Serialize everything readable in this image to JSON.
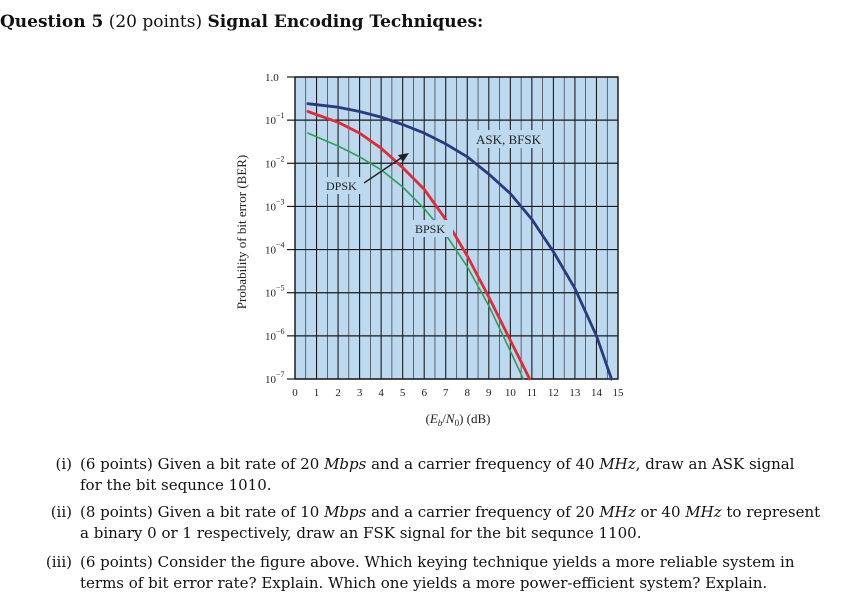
{
  "question": {
    "number": "Question 5",
    "points": "(20 points)",
    "title": "Signal Encoding Techniques:"
  },
  "chart_data": {
    "type": "line",
    "ylabel": "Probability of bit error (BER)",
    "xlabel": "(Eb/N0) (dB)",
    "x_ticks": [
      "0",
      "1",
      "2",
      "3",
      "4",
      "5",
      "6",
      "7",
      "8",
      "9",
      "10",
      "11",
      "12",
      "13",
      "14",
      "15"
    ],
    "y_ticks": [
      {
        "base": "1.0",
        "exp": ""
      },
      {
        "base": "10",
        "exp": "−1"
      },
      {
        "base": "10",
        "exp": "−2"
      },
      {
        "base": "10",
        "exp": "−3"
      },
      {
        "base": "10",
        "exp": "−4"
      },
      {
        "base": "10",
        "exp": "−5"
      },
      {
        "base": "10",
        "exp": "−6"
      },
      {
        "base": "10",
        "exp": "−7"
      }
    ],
    "xlim": [
      0,
      15
    ],
    "ylim_log10": [
      -7,
      0
    ],
    "y_scale": "log",
    "grid": true,
    "colors": {
      "plot_bg": "#bcd9ef",
      "grid": "#1a1a1a",
      "ask": "#2b3a7e",
      "bpsk": "#e32a36",
      "dpsk": "#2f9e5a"
    },
    "series": [
      {
        "name": "ASK, BFSK",
        "color": "#2b3a7e",
        "x": [
          0.6,
          2,
          3,
          4,
          5,
          6,
          7,
          8,
          9,
          10,
          11,
          12,
          13,
          14,
          14.7
        ],
        "log10": [
          -0.62,
          -0.7,
          -0.8,
          -0.93,
          -1.1,
          -1.3,
          -1.55,
          -1.85,
          -2.25,
          -2.7,
          -3.3,
          -4.05,
          -4.9,
          -6.0,
          -7.0
        ]
      },
      {
        "name": "BPSK",
        "color": "#e32a36",
        "x": [
          0.6,
          2,
          3,
          4,
          5,
          6,
          7,
          8,
          9,
          10,
          10.9
        ],
        "log10": [
          -0.8,
          -1.05,
          -1.3,
          -1.65,
          -2.1,
          -2.6,
          -3.3,
          -4.15,
          -5.1,
          -6.1,
          -7.0
        ]
      },
      {
        "name": "DPSK",
        "color": "#2f9e5a",
        "x": [
          0.6,
          2,
          3,
          4,
          5,
          6,
          7,
          8,
          9,
          10,
          10.6
        ],
        "log10": [
          -1.3,
          -1.6,
          -1.85,
          -2.15,
          -2.55,
          -3.05,
          -3.65,
          -4.4,
          -5.3,
          -6.35,
          -7.0
        ]
      }
    ],
    "annotations": [
      {
        "text": "ASK, BFSK"
      },
      {
        "text": "DPSK"
      },
      {
        "text": "BPSK"
      }
    ]
  },
  "questions": [
    {
      "num": "(i)",
      "parts": [
        {
          "t": "(6 points) Given a bit rate of 20 ",
          "i": false
        },
        {
          "t": "Mbps",
          "i": true
        },
        {
          "t": " and a carrier frequency of 40 ",
          "i": false
        },
        {
          "t": "MHz",
          "i": true
        },
        {
          "t": ", draw an ASK signal",
          "i": false
        }
      ],
      "line2": "for the bit sequnce 1010."
    },
    {
      "num": "(ii)",
      "parts": [
        {
          "t": "(8 points) Given a bit rate of 10 ",
          "i": false
        },
        {
          "t": "Mbps",
          "i": true
        },
        {
          "t": " and a carrier frequency of 20 ",
          "i": false
        },
        {
          "t": "MHz",
          "i": true
        },
        {
          "t": " or 40 ",
          "i": false
        },
        {
          "t": "MHz",
          "i": true
        },
        {
          "t": " to represent",
          "i": false
        }
      ],
      "line2": "a binary 0 or 1 respectively, draw an FSK signal for the bit sequnce 1100."
    },
    {
      "num": "(iii)",
      "parts": [
        {
          "t": "(6 points) Consider the figure above.  Which keying technique yields a more reliable system in",
          "i": false
        }
      ],
      "line2": "terms of bit error rate? Explain. Which one yields a more power-efficient system? Explain."
    }
  ]
}
